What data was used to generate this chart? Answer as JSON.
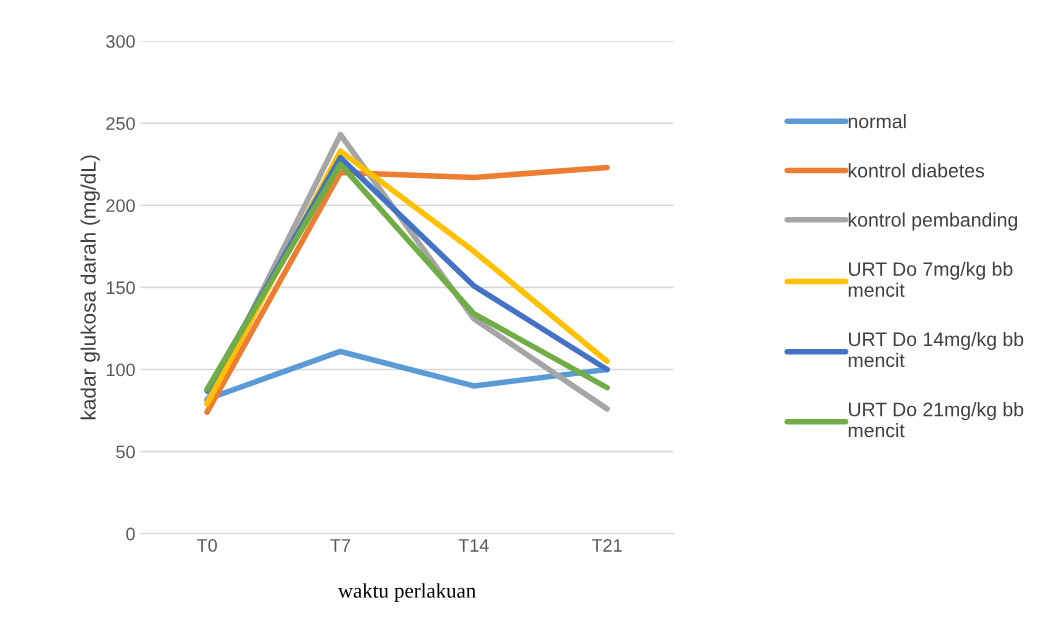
{
  "chart_data": {
    "type": "line",
    "xlabel": "waktu perlakuan",
    "ylabel": "kadar glukosa darah (mg/dL)",
    "categories": [
      "T0",
      "T7",
      "T14",
      "T21"
    ],
    "series": [
      {
        "name": "normal",
        "color": "#5b9bd5",
        "values": [
          82,
          111,
          90,
          100
        ]
      },
      {
        "name": "kontrol diabetes",
        "color": "#ed7d31",
        "values": [
          74,
          220,
          217,
          223
        ]
      },
      {
        "name": "kontrol pembanding",
        "color": "#a5a5a5",
        "values": [
          81,
          243,
          131,
          76
        ]
      },
      {
        "name": "URT Do 7mg/kg bb mencit",
        "color": "#ffc000",
        "values": [
          79,
          233,
          172,
          105
        ]
      },
      {
        "name": "URT Do 14mg/kg bb mencit",
        "color": "#4472c4",
        "values": [
          87,
          229,
          151,
          100
        ]
      },
      {
        "name": "URT Do 21mg/kg bb mencit",
        "color": "#70ad47",
        "values": [
          88,
          225,
          134,
          89
        ]
      }
    ],
    "ylim": [
      0,
      300
    ],
    "yticks": [
      0,
      50,
      100,
      150,
      200,
      250,
      300
    ],
    "grid": "y",
    "legend": "right",
    "marker": "none",
    "line_style": "solid"
  }
}
